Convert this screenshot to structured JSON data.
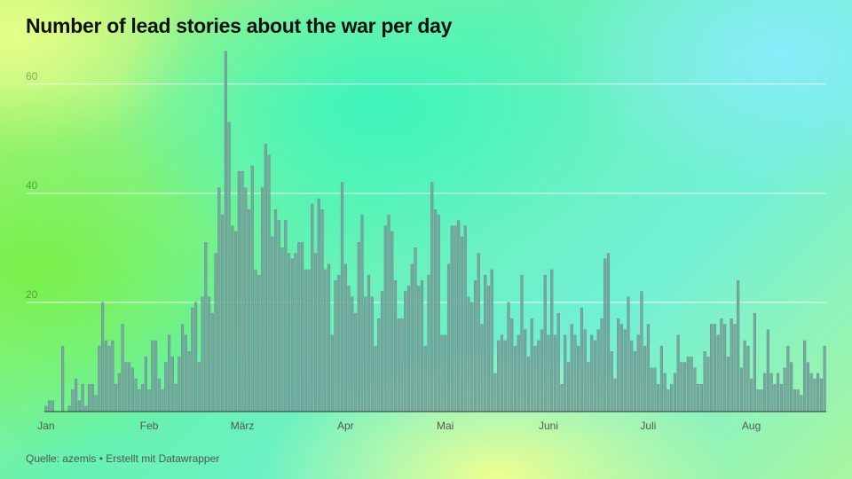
{
  "title": "Number of lead stories about the war per day",
  "source": "Quelle: azemis • Erstellt mit Datawrapper",
  "chart_data": {
    "type": "bar",
    "ylim": [
      0,
      65
    ],
    "yticks": [
      20,
      40,
      60
    ],
    "grid": true,
    "legend": "none",
    "bar_color": "#7aa8a0",
    "month_labels": [
      {
        "label": "Jan",
        "day": 1
      },
      {
        "label": "Feb",
        "day": 32
      },
      {
        "label": "März",
        "day": 60
      },
      {
        "label": "Apr",
        "day": 91
      },
      {
        "label": "Mai",
        "day": 121
      },
      {
        "label": "Juni",
        "day": 152
      },
      {
        "label": "Juli",
        "day": 182
      },
      {
        "label": "Aug",
        "day": 213
      }
    ],
    "values": [
      1,
      2,
      2,
      0,
      0,
      12,
      0,
      1,
      4,
      6,
      2,
      5,
      1,
      5,
      5,
      3,
      12,
      20,
      13,
      12,
      13,
      5,
      7,
      16,
      9,
      9,
      8,
      6,
      4,
      5,
      10,
      4,
      13,
      13,
      6,
      4,
      9,
      14,
      10,
      5,
      10,
      16,
      14,
      11,
      19,
      20,
      9,
      21,
      31,
      21,
      18,
      29,
      41,
      36,
      66,
      53,
      34,
      33,
      44,
      44,
      41,
      37,
      45,
      26,
      25,
      41,
      49,
      47,
      32,
      37,
      35,
      30,
      35,
      29,
      28,
      29,
      31,
      31,
      26,
      26,
      38,
      29,
      39,
      37,
      26,
      27,
      14,
      24,
      25,
      42,
      27,
      23,
      21,
      18,
      31,
      36,
      21,
      25,
      21,
      12,
      17,
      22,
      34,
      36,
      33,
      24,
      17,
      17,
      22,
      23,
      27,
      30,
      23,
      24,
      12,
      25,
      42,
      37,
      36,
      14,
      14,
      27,
      34,
      34,
      35,
      32,
      34,
      21,
      20,
      24,
      29,
      16,
      25,
      23,
      26,
      7,
      13,
      14,
      13,
      20,
      17,
      12,
      14,
      25,
      15,
      10,
      17,
      12,
      13,
      15,
      25,
      14,
      26,
      14,
      18,
      5,
      14,
      9,
      16,
      14,
      12,
      19,
      15,
      9,
      14,
      13,
      15,
      17,
      28,
      29,
      11,
      6,
      17,
      16,
      15,
      21,
      13,
      11,
      14,
      22,
      12,
      16,
      8,
      8,
      5,
      12,
      7,
      4,
      5,
      7,
      14,
      9,
      9,
      10,
      10,
      8,
      5,
      5,
      11,
      10,
      16,
      16,
      14,
      17,
      16,
      10,
      17,
      16,
      24,
      8,
      13,
      12,
      6,
      18,
      4,
      4,
      7,
      15,
      7,
      5,
      7,
      5,
      8,
      12,
      9,
      4,
      4,
      3,
      13,
      9,
      7,
      6,
      7,
      6,
      12
    ]
  }
}
